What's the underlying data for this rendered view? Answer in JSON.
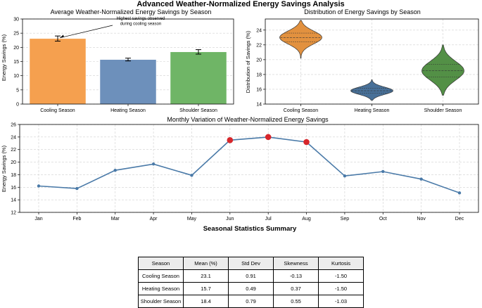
{
  "suptitle": "Advanced Weather-Normalized Energy Savings Analysis",
  "chart_data": [
    {
      "type": "bar",
      "title": "Average Weather-Normalized Energy Savings by Season",
      "xlabel": "",
      "ylabel": "Energy Savings (%)",
      "categories": [
        "Cooling Season",
        "Heating Season",
        "Shoulder Season"
      ],
      "values": [
        23.1,
        15.7,
        18.4
      ],
      "errors": [
        0.91,
        0.49,
        0.79
      ],
      "colors": [
        "#f5a04f",
        "#6d90bb",
        "#6fb566"
      ],
      "ylim": [
        0,
        30
      ],
      "yticks": [
        0,
        5,
        10,
        15,
        20,
        25,
        30
      ],
      "grid": true,
      "annotation": {
        "text_lines": [
          "Highest savings observed",
          "during cooling season"
        ],
        "target": "Cooling Season"
      }
    },
    {
      "type": "violin",
      "title": "Distribution of Energy Savings by Season",
      "xlabel": "",
      "ylabel": "Distribution of Savings (%)",
      "categories": [
        "Cooling Season",
        "Heating Season",
        "Shoulder Season"
      ],
      "colors": [
        "#e08b35",
        "#3e6892",
        "#4a8a3c"
      ],
      "ranges": [
        [
          20.2,
          25.3
        ],
        [
          14.5,
          17.3
        ],
        [
          15.2,
          22.0
        ]
      ],
      "medians": [
        23.0,
        15.8,
        18.5
      ],
      "ylim": [
        14,
        25.5
      ],
      "yticks": [
        14,
        16,
        18,
        20,
        22,
        24
      ],
      "grid": true
    },
    {
      "type": "line",
      "title": "Monthly Variation of Weather-Normalized Energy Savings",
      "xlabel": "",
      "ylabel": "Energy Savings (%)",
      "x": [
        "Jan",
        "Feb",
        "Mar",
        "Apr",
        "May",
        "Jun",
        "Jul",
        "Aug",
        "Sep",
        "Oct",
        "Nov",
        "Dec"
      ],
      "y": [
        16.2,
        15.8,
        18.7,
        19.7,
        17.9,
        23.5,
        24.0,
        23.2,
        17.8,
        18.5,
        17.3,
        15.1
      ],
      "highlighted": [
        "Jun",
        "Jul",
        "Aug"
      ],
      "line_color": "#4a7aa8",
      "highlight_color": "#d7262b",
      "ylim": [
        12,
        26
      ],
      "yticks": [
        12,
        14,
        16,
        18,
        20,
        22,
        24,
        26
      ],
      "grid": true
    },
    {
      "type": "table",
      "title": "Seasonal Statistics Summary",
      "columns": [
        "Season",
        "Mean (%)",
        "Std Dev",
        "Skewness",
        "Kurtosis"
      ],
      "rows": [
        [
          "Cooling Season",
          "23.1",
          "0.91",
          "-0.13",
          "-1.50"
        ],
        [
          "Heating Season",
          "15.7",
          "0.49",
          "0.37",
          "-1.50"
        ],
        [
          "Shoulder Season",
          "18.4",
          "0.79",
          "0.55",
          "-1.03"
        ]
      ]
    }
  ]
}
